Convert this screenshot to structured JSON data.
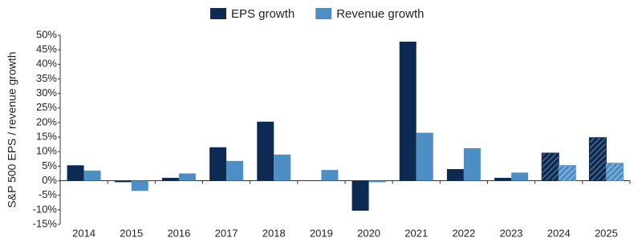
{
  "chart_data": {
    "type": "bar",
    "y_label": "S&P 500 EPS / revenue growth",
    "categories": [
      "2014",
      "2015",
      "2016",
      "2017",
      "2018",
      "2019",
      "2020",
      "2021",
      "2022",
      "2023",
      "2024",
      "2025"
    ],
    "series": [
      {
        "name": "EPS growth",
        "color": "#0d2b52",
        "values": [
          5.3,
          -0.5,
          1,
          11.5,
          20.3,
          0,
          -10.3,
          47.8,
          4,
          1,
          9.5,
          14.8
        ]
      },
      {
        "name": "Revenue growth",
        "color": "#4d8fc4",
        "values": [
          3.5,
          -3.5,
          2.5,
          6.8,
          9,
          3.7,
          -0.5,
          16.5,
          11.2,
          2.8,
          5.2,
          6
        ]
      }
    ],
    "hatched": [
      false,
      false,
      false,
      false,
      false,
      false,
      false,
      false,
      false,
      false,
      true,
      true
    ],
    "ylim": [
      -15,
      50
    ],
    "yticks": [
      {
        "value": -15,
        "label": "-15%"
      },
      {
        "value": -10,
        "label": "-10%"
      },
      {
        "value": -5,
        "label": "-5%"
      },
      {
        "value": 0,
        "label": "0%"
      },
      {
        "value": 5,
        "label": "5%"
      },
      {
        "value": 10,
        "label": "10%"
      },
      {
        "value": 15,
        "label": "15%"
      },
      {
        "value": 20,
        "label": "20%"
      },
      {
        "value": 25,
        "label": "25%"
      },
      {
        "value": 30,
        "label": "30%"
      },
      {
        "value": 35,
        "label": "35%"
      },
      {
        "value": 40,
        "label": "40%"
      },
      {
        "value": 45,
        "label": "45%"
      },
      {
        "value": 50,
        "label": "50%"
      }
    ],
    "legend": "top"
  }
}
